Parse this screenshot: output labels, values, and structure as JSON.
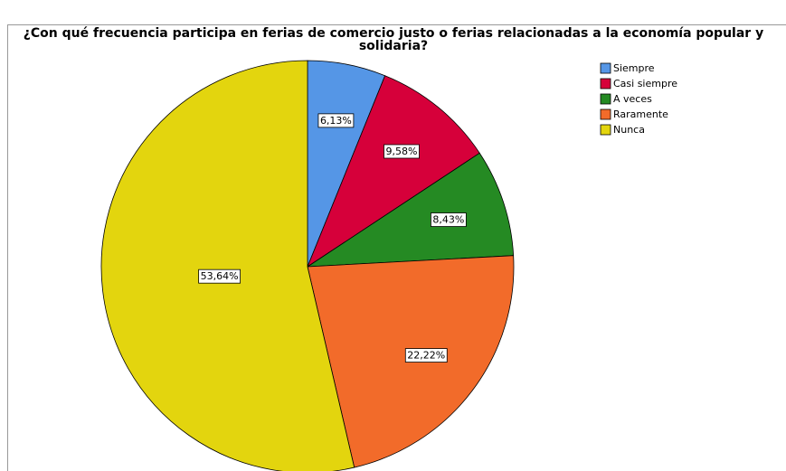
{
  "chart_data": {
    "type": "pie",
    "title": "¿Con qué frecuencia participa en ferias de comercio justo o ferias relacionadas a la economía popular y solidaria?",
    "categories": [
      "Siempre",
      "Casi siempre",
      "A veces",
      "Raramente",
      "Nunca"
    ],
    "values": [
      6.13,
      9.58,
      8.43,
      22.22,
      53.64
    ],
    "value_labels": [
      "6,13%",
      "9,58%",
      "8,43%",
      "22,22%",
      "53,64%"
    ],
    "colors": [
      "#5596e6",
      "#d6003a",
      "#258a23",
      "#f26b2a",
      "#e3d50e"
    ],
    "legend": "top-right"
  }
}
